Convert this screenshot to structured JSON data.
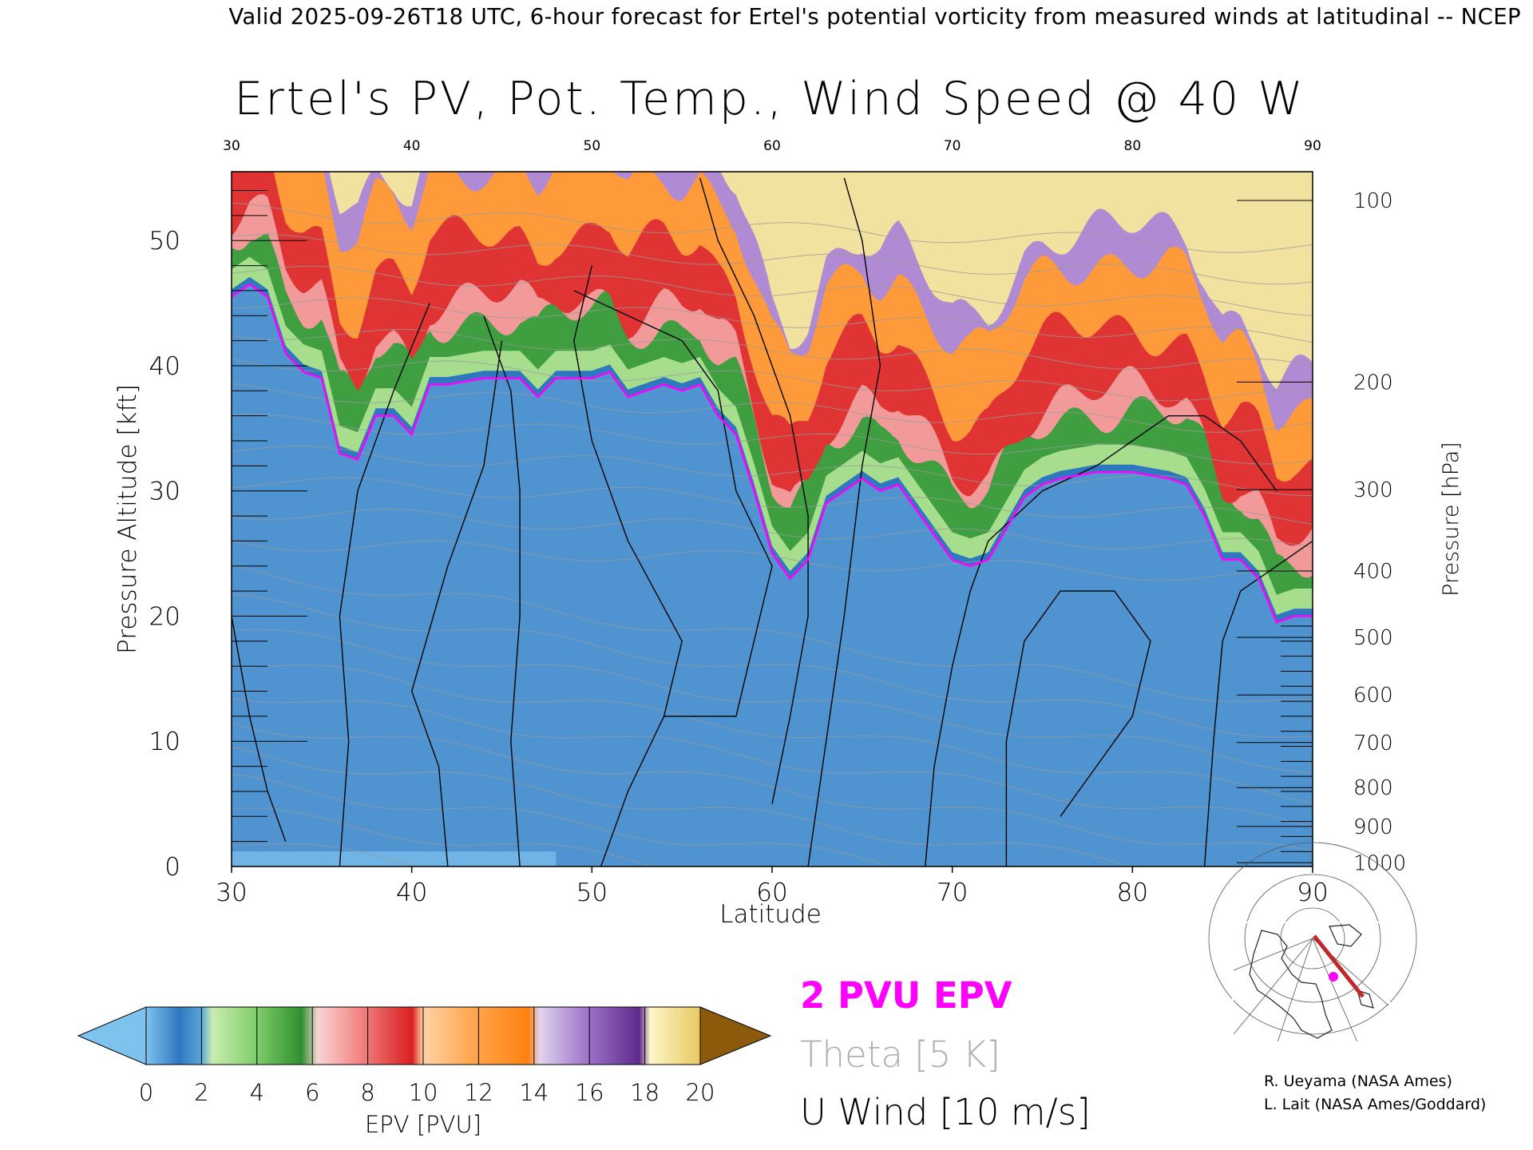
{
  "header": "Valid 2025-09-26T18 UTC, 6-hour forecast for Ertel's potential vorticity from measured winds at latitudinal -- NCEP",
  "chart_data": {
    "type": "heatmap",
    "title": "Ertel's PV, Pot. Temp., Wind Speed @ 40 W",
    "xlabel": "Latitude",
    "ylabel": "Pressure Altitude [kft]",
    "ylabel_right": "Pressure [hPa]",
    "xlim": [
      30,
      90
    ],
    "ylim": [
      0,
      55.5
    ],
    "x_ticks": [
      "30",
      "40",
      "50",
      "60",
      "70",
      "80",
      "90"
    ],
    "y_ticks": [
      "0",
      "10",
      "20",
      "30",
      "40",
      "50"
    ],
    "y_tick_values": [
      0,
      10,
      20,
      30,
      40,
      50
    ],
    "pressure_ticks": [
      {
        "label": "1000",
        "kft": 0.3
      },
      {
        "label": "900",
        "kft": 3.2
      },
      {
        "label": "800",
        "kft": 6.3
      },
      {
        "label": "700",
        "kft": 9.9
      },
      {
        "label": "600",
        "kft": 13.7
      },
      {
        "label": "500",
        "kft": 18.3
      },
      {
        "label": "400",
        "kft": 23.6
      },
      {
        "label": "300",
        "kft": 30.1
      },
      {
        "label": "200",
        "kft": 38.7
      },
      {
        "label": "100",
        "kft": 53.2
      }
    ],
    "tropopause_2pvu_kft": [
      {
        "lat": 30,
        "kft": 45.5
      },
      {
        "lat": 31,
        "kft": 46.5
      },
      {
        "lat": 32,
        "kft": 45.5
      },
      {
        "lat": 33,
        "kft": 41
      },
      {
        "lat": 34,
        "kft": 39.5
      },
      {
        "lat": 35,
        "kft": 39
      },
      {
        "lat": 36,
        "kft": 33
      },
      {
        "lat": 37,
        "kft": 32.5
      },
      {
        "lat": 38,
        "kft": 36
      },
      {
        "lat": 39,
        "kft": 36
      },
      {
        "lat": 40,
        "kft": 34.5
      },
      {
        "lat": 41,
        "kft": 38.5
      },
      {
        "lat": 42,
        "kft": 38.5
      },
      {
        "lat": 44,
        "kft": 39
      },
      {
        "lat": 46,
        "kft": 39
      },
      {
        "lat": 47,
        "kft": 37.5
      },
      {
        "lat": 48,
        "kft": 39
      },
      {
        "lat": 50,
        "kft": 39
      },
      {
        "lat": 51,
        "kft": 39.5
      },
      {
        "lat": 52,
        "kft": 37.5
      },
      {
        "lat": 53,
        "kft": 38
      },
      {
        "lat": 54,
        "kft": 38.5
      },
      {
        "lat": 55,
        "kft": 38
      },
      {
        "lat": 56,
        "kft": 38.5
      },
      {
        "lat": 57,
        "kft": 36
      },
      {
        "lat": 58,
        "kft": 34.5
      },
      {
        "lat": 59,
        "kft": 30
      },
      {
        "lat": 60,
        "kft": 25
      },
      {
        "lat": 61,
        "kft": 23
      },
      {
        "lat": 62,
        "kft": 24.5
      },
      {
        "lat": 63,
        "kft": 29
      },
      {
        "lat": 64,
        "kft": 30
      },
      {
        "lat": 65,
        "kft": 31
      },
      {
        "lat": 66,
        "kft": 30
      },
      {
        "lat": 67,
        "kft": 30.5
      },
      {
        "lat": 68,
        "kft": 28.5
      },
      {
        "lat": 69,
        "kft": 26.5
      },
      {
        "lat": 70,
        "kft": 24.5
      },
      {
        "lat": 71,
        "kft": 24
      },
      {
        "lat": 72,
        "kft": 24.5
      },
      {
        "lat": 73,
        "kft": 27
      },
      {
        "lat": 74,
        "kft": 29.5
      },
      {
        "lat": 75,
        "kft": 30.5
      },
      {
        "lat": 76,
        "kft": 31
      },
      {
        "lat": 78,
        "kft": 31.5
      },
      {
        "lat": 80,
        "kft": 31.5
      },
      {
        "lat": 82,
        "kft": 31
      },
      {
        "lat": 83,
        "kft": 30.5
      },
      {
        "lat": 84,
        "kft": 28
      },
      {
        "lat": 85,
        "kft": 24.5
      },
      {
        "lat": 86,
        "kft": 24.5
      },
      {
        "lat": 87,
        "kft": 23
      },
      {
        "lat": 88,
        "kft": 19.5
      },
      {
        "lat": 89,
        "kft": 20
      },
      {
        "lat": 90,
        "kft": 20
      }
    ],
    "colorbar": {
      "label": "EPV [PVU]",
      "tick_labels": [
        "0",
        "2",
        "4",
        "6",
        "8",
        "10",
        "12",
        "14",
        "16",
        "18",
        "20"
      ],
      "colors": [
        "#5fb0ec",
        "#2f7cc4",
        "#9ddd8a",
        "#3c9e3c",
        "#f89898",
        "#dc2626",
        "#ffb266",
        "#ff8a1c",
        "#c6a6e0",
        "#7b3fa6",
        "#f8ec9c",
        "#8c5a0a"
      ]
    },
    "legend": [
      {
        "label": "2 PVU EPV",
        "color": "#ff00ff"
      },
      {
        "label": "Theta [5 K]",
        "color": "#a8a8a8"
      },
      {
        "label": "U Wind [10 m/s]",
        "color": "#000000"
      }
    ]
  },
  "credits": [
    "R. Ueyama (NASA Ames)",
    "L. Lait (NASA Ames/Goddard)"
  ]
}
